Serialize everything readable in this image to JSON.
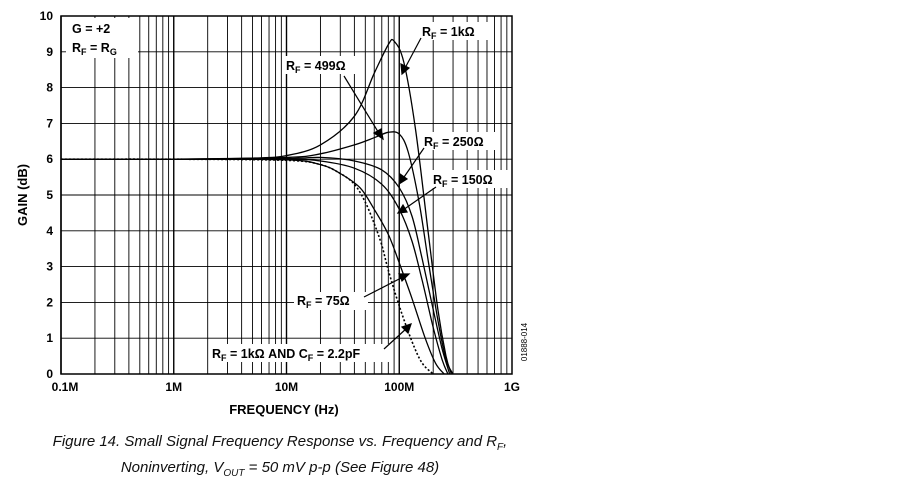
{
  "chart_data": {
    "type": "line",
    "xscale": "log",
    "xlim": [
      100000,
      1000000000
    ],
    "ylim": [
      0,
      10
    ],
    "xlabel": "FREQUENCY (Hz)",
    "ylabel": "GAIN (dB)",
    "xticks": [
      "0.1M",
      "1M",
      "10M",
      "100M",
      "1G"
    ],
    "yticks": [
      "0",
      "1",
      "2",
      "3",
      "4",
      "5",
      "6",
      "7",
      "8",
      "9",
      "10"
    ],
    "conditions": [
      "G = +2",
      "R",
      "F",
      " = R",
      "G"
    ],
    "figure_code": "01888-014",
    "series": [
      {
        "name_main": "R",
        "name_sub": "F",
        "name_tail": " = 1kΩ",
        "dash": false,
        "x": [
          100000,
          1000000,
          5000000,
          10000000,
          20000000,
          40000000,
          60000000,
          80000000,
          90000000,
          110000000,
          140000000,
          180000000,
          220000000,
          260000000,
          290000000
        ],
        "y": [
          6.0,
          6.0,
          6.03,
          6.1,
          6.4,
          7.2,
          8.4,
          9.2,
          9.3,
          8.7,
          6.8,
          4.0,
          1.8,
          0.5,
          0
        ]
      },
      {
        "name_main": "R",
        "name_sub": "F",
        "name_tail": " = 499Ω",
        "dash": false,
        "x": [
          100000,
          1000000,
          10000000,
          20000000,
          40000000,
          60000000,
          80000000,
          100000000,
          120000000,
          150000000,
          180000000,
          220000000,
          260000000,
          300000000
        ],
        "y": [
          6.0,
          6.0,
          6.05,
          6.15,
          6.4,
          6.6,
          6.75,
          6.7,
          6.2,
          4.8,
          3.2,
          1.5,
          0.4,
          0
        ]
      },
      {
        "name_main": "R",
        "name_sub": "F",
        "name_tail": " = 250Ω",
        "dash": false,
        "x": [
          100000,
          1000000,
          10000000,
          20000000,
          40000000,
          70000000,
          100000000,
          130000000,
          160000000,
          200000000,
          240000000,
          280000000
        ],
        "y": [
          6.0,
          6.0,
          6.02,
          6.05,
          5.95,
          5.7,
          5.2,
          4.4,
          3.2,
          1.8,
          0.7,
          0
        ]
      },
      {
        "name_main": "R",
        "name_sub": "F",
        "name_tail": " = 150Ω",
        "dash": false,
        "x": [
          100000,
          1000000,
          10000000,
          20000000,
          40000000,
          70000000,
          100000000,
          130000000,
          160000000,
          200000000,
          240000000,
          270000000
        ],
        "y": [
          6.0,
          6.0,
          6.0,
          5.95,
          5.75,
          5.3,
          4.6,
          3.7,
          2.6,
          1.3,
          0.4,
          0
        ]
      },
      {
        "name_main": "R",
        "name_sub": "F",
        "name_tail": " = 75Ω",
        "dash": false,
        "x": [
          100000,
          1000000,
          10000000,
          20000000,
          30000000,
          45000000,
          60000000,
          80000000,
          100000000,
          130000000,
          170000000,
          210000000,
          250000000
        ],
        "y": [
          6.0,
          6.0,
          5.98,
          5.85,
          5.6,
          5.2,
          4.6,
          3.9,
          3.1,
          2.1,
          1.0,
          0.3,
          0
        ]
      },
      {
        "name_main": "R",
        "name_sub": "F",
        "name_tail": " = 1kΩ AND C",
        "name_sub2": "F",
        "name_tail2": " = 2.2pF",
        "dash": true,
        "x": [
          100000,
          1000000,
          10000000,
          20000000,
          30000000,
          40000000,
          50000000,
          60000000,
          70000000,
          80000000,
          100000000,
          130000000,
          160000000,
          200000000
        ],
        "y": [
          6.0,
          6.0,
          5.97,
          5.85,
          5.6,
          5.3,
          4.8,
          4.2,
          3.6,
          2.9,
          1.9,
          0.9,
          0.3,
          0
        ]
      }
    ]
  },
  "caption": {
    "line1_a": "Figure 14. Small Signal Frequency Response vs. Frequency and R",
    "line1_sub": "F",
    "line1_b": ",",
    "line2_a": "Noninverting, V",
    "line2_sub": "OUT",
    "line2_b": " = 50 mV p-p (See Figure 48)"
  }
}
